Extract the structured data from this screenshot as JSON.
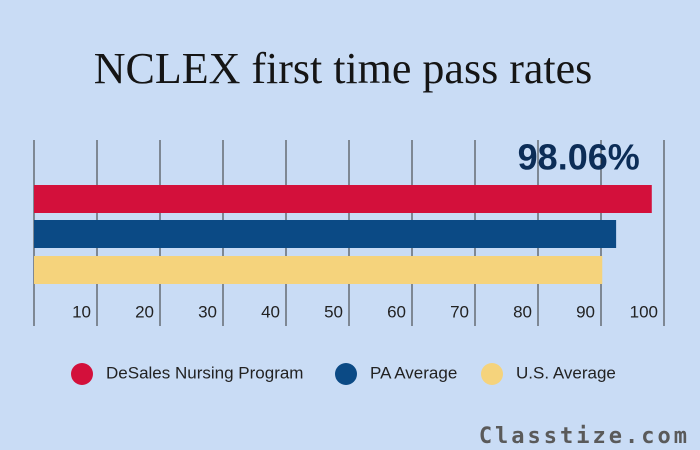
{
  "chart_data": {
    "type": "bar",
    "orientation": "horizontal",
    "title": "NCLEX first time pass rates",
    "series": [
      {
        "name": "DeSales Nursing Program",
        "color": "#d3103b",
        "values": [
          98.06
        ],
        "value_labels": [
          "98.06%"
        ]
      },
      {
        "name": "PA Average",
        "color": "#0b4a85",
        "values": [
          92.4
        ]
      },
      {
        "name": "U.S. Average",
        "color": "#f5d37c",
        "values": [
          90.2
        ]
      }
    ],
    "xlim": [
      0,
      100
    ],
    "xticks": [
      10,
      20,
      30,
      40,
      50,
      60,
      70,
      80,
      90,
      100
    ],
    "grid": true,
    "legend": "bottom",
    "watermark": "Classtize.com"
  }
}
